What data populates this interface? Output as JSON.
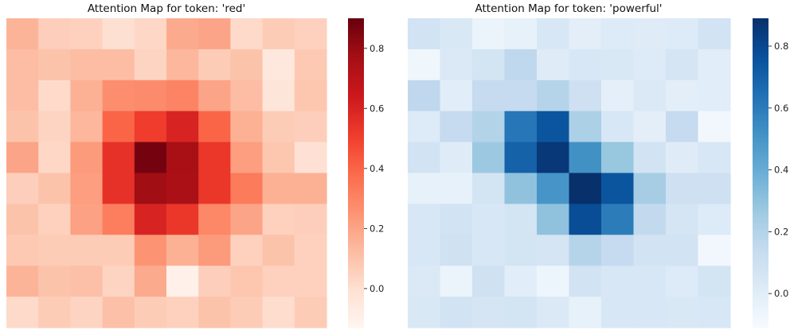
{
  "chart_data": [
    {
      "type": "heatmap",
      "title": "Attention Map for token: 'red'",
      "colormap": "Reds",
      "colorbar": {
        "vmin": -0.13,
        "vmax": 0.9,
        "ticks": [
          0.0,
          0.2,
          0.4,
          0.6,
          0.8
        ],
        "tick_labels": [
          "0.0",
          "0.2",
          "0.4",
          "0.6",
          "0.8"
        ]
      },
      "rows": 10,
      "cols": 10,
      "values": [
        [
          0.15,
          0.06,
          0.05,
          0.0,
          0.03,
          0.18,
          0.2,
          0.02,
          0.07,
          0.05
        ],
        [
          0.12,
          0.1,
          0.12,
          0.12,
          0.04,
          0.14,
          0.07,
          0.1,
          -0.05,
          0.08
        ],
        [
          0.12,
          0.02,
          0.16,
          0.27,
          0.28,
          0.3,
          0.2,
          0.12,
          -0.03,
          0.09
        ],
        [
          0.1,
          0.04,
          0.14,
          0.4,
          0.51,
          0.6,
          0.4,
          0.16,
          0.07,
          0.06
        ],
        [
          0.2,
          0.03,
          0.23,
          0.55,
          0.87,
          0.76,
          0.53,
          0.22,
          0.09,
          -0.01
        ],
        [
          0.06,
          0.1,
          0.22,
          0.55,
          0.78,
          0.75,
          0.53,
          0.33,
          0.16,
          0.16
        ],
        [
          0.1,
          0.05,
          0.21,
          0.32,
          0.6,
          0.53,
          0.29,
          0.2,
          0.05,
          0.06
        ],
        [
          0.08,
          0.07,
          0.07,
          0.07,
          0.25,
          0.16,
          0.23,
          0.05,
          0.1,
          0.05
        ],
        [
          0.15,
          0.1,
          0.11,
          0.04,
          0.18,
          -0.1,
          0.06,
          0.09,
          0.05,
          0.05
        ],
        [
          0.02,
          0.07,
          0.04,
          0.11,
          0.07,
          0.05,
          0.1,
          0.07,
          0.01,
          0.07
        ]
      ]
    },
    {
      "type": "heatmap",
      "title": "Attention Map for token: 'powerful'",
      "colormap": "Blues",
      "colorbar": {
        "vmin": -0.11,
        "vmax": 0.89,
        "ticks": [
          0.0,
          0.2,
          0.4,
          0.6,
          0.8
        ],
        "tick_labels": [
          "0.0",
          "0.2",
          "0.4",
          "0.6",
          "0.8"
        ]
      },
      "rows": 10,
      "cols": 10,
      "values": [
        [
          0.08,
          0.04,
          -0.05,
          -0.03,
          0.05,
          -0.01,
          0.02,
          0.01,
          0.02,
          0.08
        ],
        [
          -0.07,
          0.03,
          0.07,
          0.16,
          0.01,
          0.05,
          0.04,
          0.02,
          0.06,
          0.0
        ],
        [
          0.16,
          0.0,
          0.14,
          0.14,
          0.19,
          0.1,
          -0.02,
          0.03,
          -0.01,
          0.0
        ],
        [
          0.02,
          0.14,
          0.2,
          0.62,
          0.75,
          0.22,
          0.05,
          -0.01,
          0.14,
          -0.08
        ],
        [
          0.08,
          0.01,
          0.27,
          0.7,
          0.86,
          0.52,
          0.28,
          0.08,
          0.01,
          0.05
        ],
        [
          -0.03,
          -0.03,
          0.07,
          0.3,
          0.5,
          0.9,
          0.75,
          0.24,
          0.1,
          0.1
        ],
        [
          0.05,
          0.08,
          0.05,
          0.07,
          0.3,
          0.78,
          0.6,
          0.15,
          0.06,
          0.02
        ],
        [
          0.05,
          0.09,
          0.05,
          0.07,
          0.06,
          0.19,
          0.14,
          0.08,
          0.08,
          -0.08
        ],
        [
          0.03,
          -0.05,
          0.09,
          0.0,
          -0.06,
          0.08,
          0.05,
          0.05,
          0.02,
          0.07
        ],
        [
          0.04,
          0.08,
          0.06,
          0.07,
          0.03,
          -0.03,
          0.05,
          0.05,
          0.04,
          0.05
        ]
      ]
    }
  ]
}
